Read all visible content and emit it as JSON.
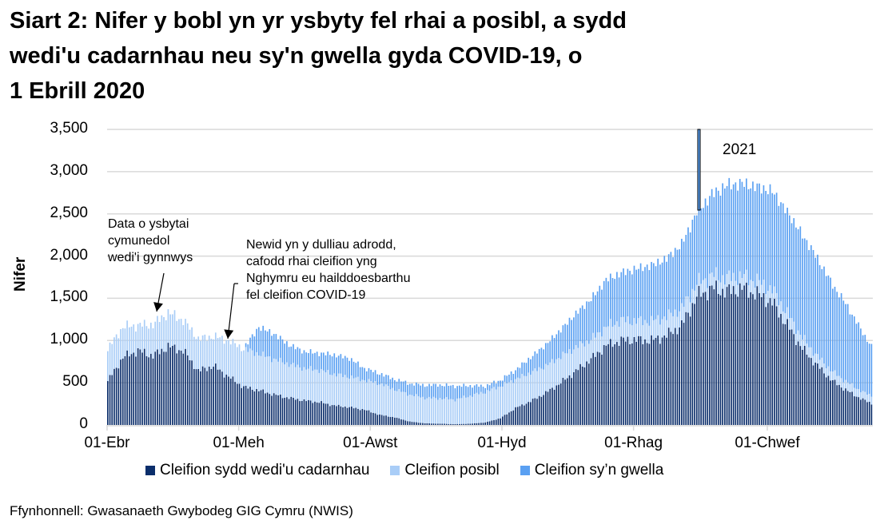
{
  "title": {
    "lines": [
      "Siart 2: Nifer y bobl yn yr ysbyty fel rhai a posibl, a sydd",
      "wedi'u cadarnhau neu sy'n gwella gyda COVID-19, o",
      "1 Ebrill 2020"
    ]
  },
  "source": "Ffynhonnell: Gwasanaeth Gwybodeg GIG Cymru (NWIS)",
  "annotations": {
    "community": [
      "Data o ysbytai",
      "cymunedol",
      "wedi'i gynnwys"
    ],
    "reporting": [
      "Newid yn y dulliau adrodd,",
      "cafodd rhai cleifion yng",
      "Nghymru eu hailddoesbarthu",
      "fel cleifion COVID-19"
    ],
    "year": "2021"
  },
  "colors": {
    "confirmed": "#0b2e6b",
    "suspected": "#a9cdf7",
    "recovering": "#5aa0f2",
    "grid": "#d9d9d9",
    "axis": "#d9d9d9"
  },
  "chart_data": {
    "type": "bar",
    "stacked": true,
    "title": "Siart 2: Nifer y bobl yn yr ysbyty fel rhai a posibl, a sydd wedi'u cadarnhau neu sy'n gwella gyda COVID-19, o 1 Ebrill 2020",
    "xlabel": "",
    "ylabel": "Nifer",
    "ylim": [
      0,
      3500
    ],
    "yticks": [
      0,
      500,
      1000,
      1500,
      2000,
      2500,
      3000,
      3500
    ],
    "ytick_labels": [
      "0",
      "500",
      "1,000",
      "1,500",
      "2,000",
      "2,500",
      "3,000",
      "3,500"
    ],
    "xtick_labels": [
      "01-Ebr",
      "01-Meh",
      "01-Awst",
      "01-Hyd",
      "01-Rhag",
      "01-Chwef"
    ],
    "xtick_days": [
      0,
      61,
      122,
      183,
      244,
      306
    ],
    "grid": true,
    "legend_position": "bottom",
    "total_days": 355,
    "resolution": "weekly control points (day = 7 × index), daily bars interpolated",
    "series": [
      {
        "name": "Cleifion sydd wedi'u cadarnhau",
        "values": [
          520,
          800,
          880,
          820,
          930,
          880,
          640,
          700,
          570,
          450,
          410,
          360,
          320,
          290,
          270,
          230,
          210,
          180,
          120,
          90,
          40,
          20,
          15,
          10,
          15,
          30,
          80,
          200,
          280,
          380,
          500,
          640,
          780,
          940,
          1000,
          1010,
          1000,
          1060,
          1180,
          1520,
          1620,
          1580,
          1620,
          1550,
          1450,
          1180,
          900,
          700,
          520,
          400,
          300,
          220
        ]
      },
      {
        "name": "Cleifion posibl",
        "values": [
          380,
          360,
          300,
          370,
          400,
          360,
          380,
          350,
          430,
          450,
          430,
          420,
          400,
          380,
          380,
          370,
          360,
          350,
          370,
          330,
          320,
          300,
          300,
          290,
          330,
          360,
          380,
          340,
          340,
          320,
          310,
          280,
          230,
          220,
          240,
          220,
          230,
          220,
          200,
          150,
          150,
          160,
          140,
          150,
          150,
          140,
          130,
          110,
          110,
          100,
          90,
          90
        ]
      },
      {
        "name": "Cleifion sy’n gwella",
        "values": [
          0,
          0,
          0,
          0,
          0,
          0,
          0,
          0,
          0,
          0,
          320,
          300,
          230,
          200,
          200,
          230,
          220,
          140,
          120,
          120,
          130,
          150,
          160,
          160,
          120,
          70,
          70,
          110,
          180,
          250,
          320,
          400,
          480,
          560,
          560,
          620,
          660,
          690,
          760,
          850,
          960,
          1100,
          1100,
          1120,
          1170,
          1200,
          1220,
          1160,
          1030,
          900,
          700,
          500
        ]
      }
    ]
  }
}
